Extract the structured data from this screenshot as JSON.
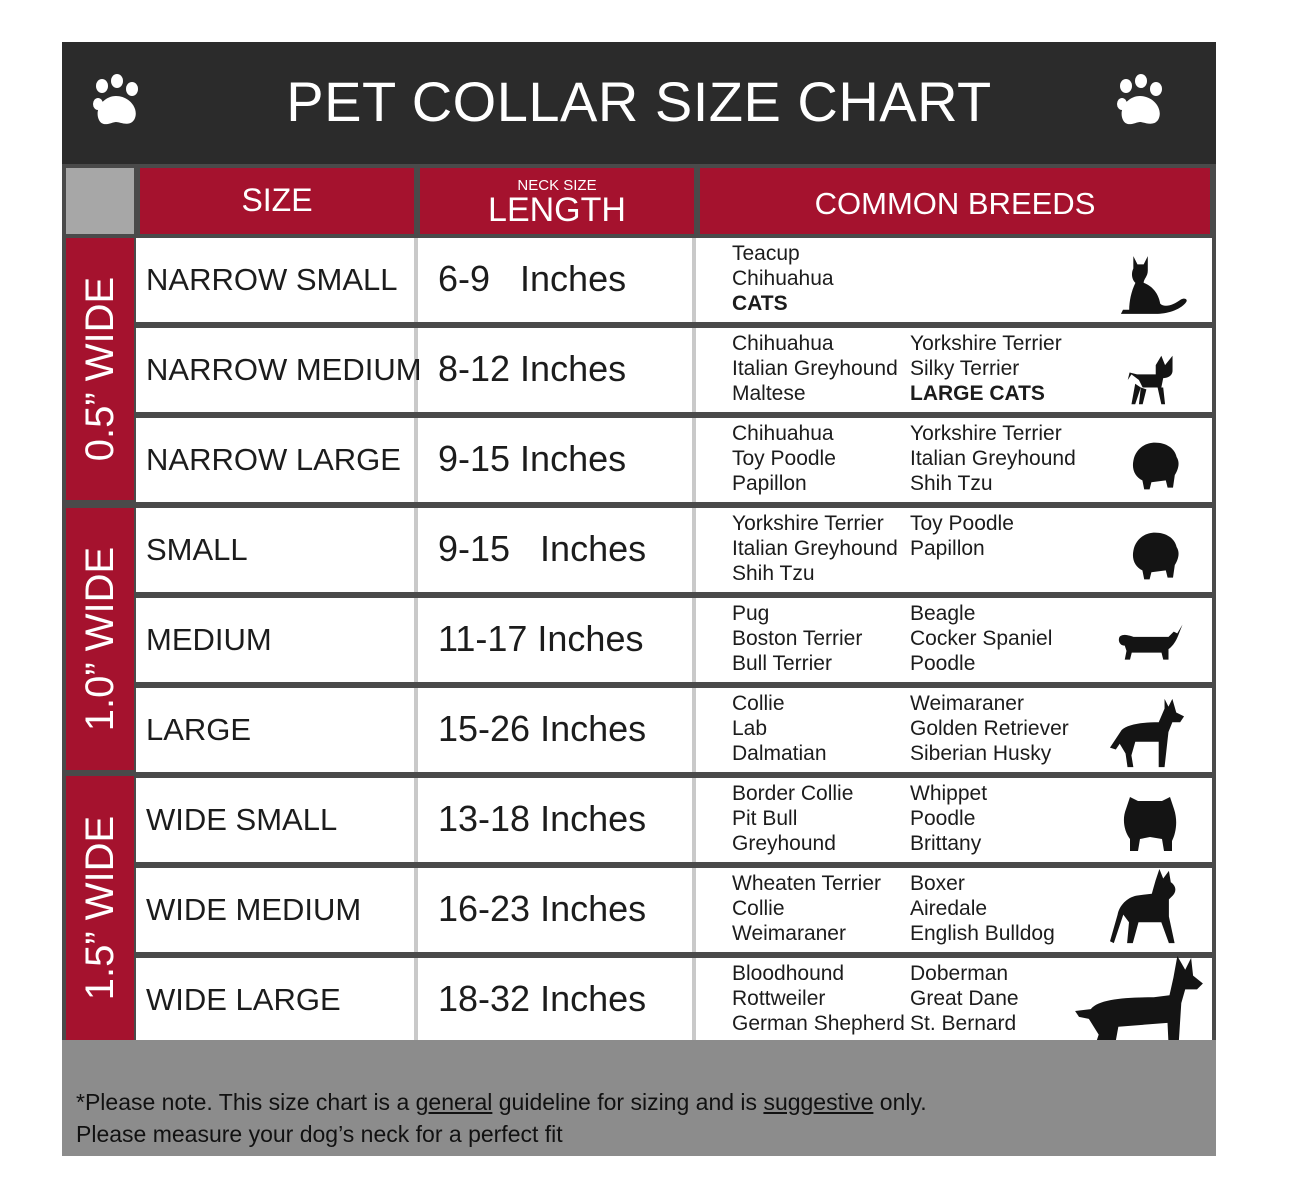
{
  "title": "PET COLLAR SIZE CHART",
  "icons": {
    "left": "paw-print-icon",
    "right": "paw-print-icon"
  },
  "colors": {
    "header_bg": "#2b2b2b",
    "accent_red": "#a5122e",
    "grid_gray": "#4a4a4a",
    "footer_gray": "#8c8c8c"
  },
  "columns": {
    "size": "SIZE",
    "length_small": "NECK SIZE",
    "length": "LENGTH",
    "breeds": "COMMON BREEDS"
  },
  "bands": [
    {
      "label": "0.5” WIDE"
    },
    {
      "label": "1.0” WIDE"
    },
    {
      "label": "1.5” WIDE"
    }
  ],
  "rows": [
    {
      "size": "NARROW SMALL",
      "length": "6-9   Inches",
      "breeds_a": [
        "Teacup",
        "Chihuahua"
      ],
      "breeds_a_bold": "CATS",
      "breeds_b": [],
      "breeds_b_bold": "",
      "animal_icon": "cat-icon"
    },
    {
      "size": "NARROW MEDIUM",
      "length": "8-12 Inches",
      "breeds_a": [
        "Chihuahua",
        "Italian Greyhound",
        "Maltese"
      ],
      "breeds_a_bold": "",
      "breeds_b": [
        "Yorkshire Terrier",
        "Silky Terrier"
      ],
      "breeds_b_bold": "LARGE CATS",
      "animal_icon": "chihuahua-icon"
    },
    {
      "size": "NARROW LARGE",
      "length": "9-15 Inches",
      "breeds_a": [
        "Chihuahua",
        "Toy Poodle",
        "Papillon"
      ],
      "breeds_a_bold": "",
      "breeds_b": [
        "Yorkshire Terrier",
        "Italian Greyhound",
        "Shih Tzu"
      ],
      "breeds_b_bold": "",
      "animal_icon": "pomeranian-icon"
    },
    {
      "size": "SMALL",
      "length": "9-15   Inches",
      "breeds_a": [
        "Yorkshire Terrier",
        "Italian Greyhound",
        "Shih Tzu"
      ],
      "breeds_a_bold": "",
      "breeds_b": [
        "Toy Poodle",
        "Papillon"
      ],
      "breeds_b_bold": "",
      "animal_icon": "pomeranian-icon"
    },
    {
      "size": "MEDIUM",
      "length": "11-17 Inches",
      "breeds_a": [
        "Pug",
        "Boston Terrier",
        "Bull Terrier"
      ],
      "breeds_a_bold": "",
      "breeds_b": [
        "Beagle",
        "Cocker Spaniel",
        "Poodle"
      ],
      "breeds_b_bold": "",
      "animal_icon": "dachshund-icon"
    },
    {
      "size": "LARGE",
      "length": "15-26 Inches",
      "breeds_a": [
        "Collie",
        "Lab",
        "Dalmatian"
      ],
      "breeds_a_bold": "",
      "breeds_b": [
        "Weimaraner",
        "Golden Retriever",
        "Siberian Husky"
      ],
      "breeds_b_bold": "",
      "animal_icon": "shepherd-dog-icon"
    },
    {
      "size": "WIDE SMALL",
      "length": "13-18 Inches",
      "breeds_a": [
        "Border Collie",
        "Pit Bull",
        "Greyhound"
      ],
      "breeds_a_bold": "",
      "breeds_b": [
        "Whippet",
        "Poodle",
        "Brittany"
      ],
      "breeds_b_bold": "",
      "animal_icon": "bulldog-icon"
    },
    {
      "size": "WIDE MEDIUM",
      "length": "16-23 Inches",
      "breeds_a": [
        "Wheaten Terrier",
        "Collie",
        "Weimaraner"
      ],
      "breeds_a_bold": "",
      "breeds_b": [
        "Boxer",
        "Airedale",
        "English Bulldog"
      ],
      "breeds_b_bold": "",
      "animal_icon": "pitbull-icon"
    },
    {
      "size": "WIDE LARGE",
      "length": "18-32 Inches",
      "breeds_a": [
        "Bloodhound",
        "Rottweiler",
        "German Shepherd"
      ],
      "breeds_a_bold": "",
      "breeds_b": [
        "Doberman",
        "Great Dane",
        "St. Bernard"
      ],
      "breeds_b_bold": "",
      "animal_icon": "doberman-icon"
    }
  ],
  "footer": {
    "p1": "*Please note. This size chart is a ",
    "u1": "general",
    "p2": " guideline for sizing and is ",
    "u2": "suggestive",
    "p3": " only.",
    "line2": "Please measure your dog’s neck for a perfect fit"
  }
}
